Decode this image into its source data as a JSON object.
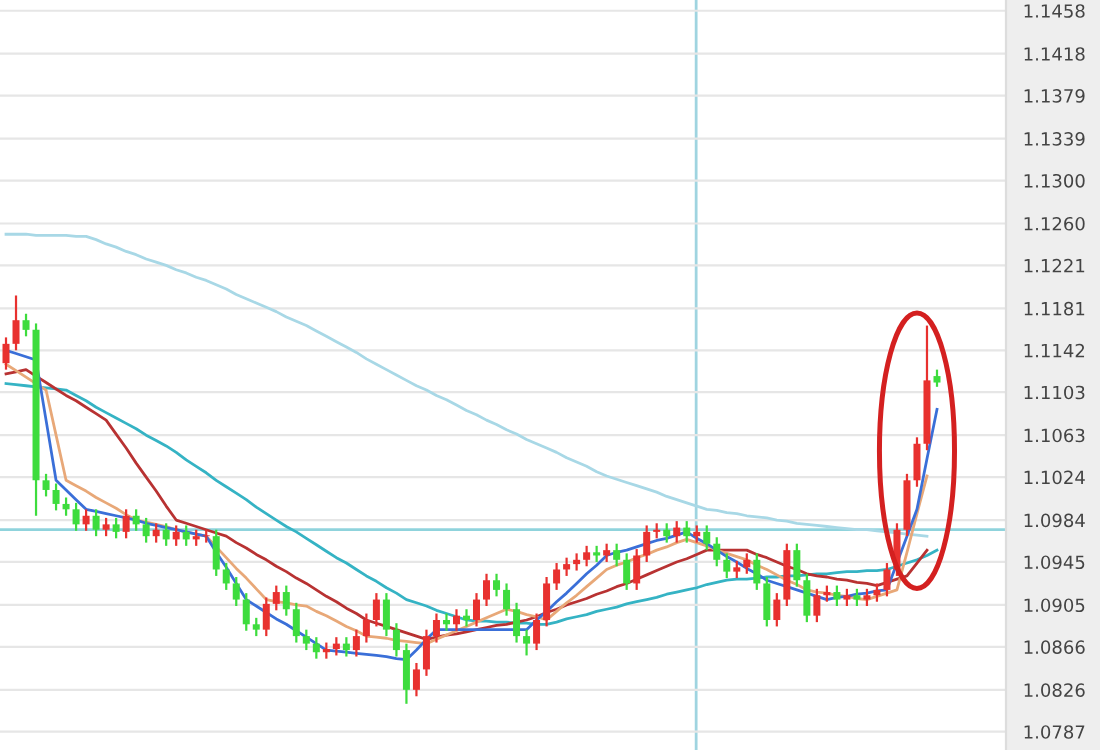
{
  "chart_data": {
    "type": "candlestick",
    "categories": [
      null,
      null,
      null,
      null,
      null,
      null,
      null,
      null,
      null,
      null,
      null,
      null,
      null,
      null,
      null,
      null,
      null,
      null,
      null,
      null,
      null,
      null,
      null,
      null,
      null,
      null,
      null,
      null,
      null,
      null,
      null,
      null,
      null,
      null,
      null,
      null,
      null,
      null,
      null,
      null,
      null,
      null,
      null,
      null,
      null,
      null,
      null,
      null,
      null,
      null,
      null,
      null,
      null,
      null,
      null,
      null,
      null,
      null,
      null,
      null,
      null,
      null,
      null,
      null,
      null,
      null,
      null,
      null,
      null,
      null,
      null,
      null,
      null,
      null,
      null,
      null,
      null,
      null,
      null,
      null,
      null,
      null,
      null,
      null,
      null,
      null,
      null,
      null,
      null,
      null,
      null,
      null,
      null,
      null
    ],
    "ohlc": [
      [
        1.113,
        1.1154,
        1.1124,
        1.1148
      ],
      [
        1.1148,
        1.1193,
        1.1142,
        1.117
      ],
      [
        1.117,
        1.1176,
        1.1155,
        1.1161
      ],
      [
        1.1161,
        1.1167,
        1.0988,
        1.1021
      ],
      [
        1.1021,
        1.1027,
        1.1006,
        1.1012
      ],
      [
        1.1012,
        1.1018,
        1.0993,
        1.0999
      ],
      [
        1.0999,
        1.1005,
        1.0988,
        1.0994
      ],
      [
        1.0994,
        1.1,
        1.0974,
        1.098
      ],
      [
        1.098,
        1.0994,
        1.0974,
        1.0988
      ],
      [
        1.0988,
        1.0994,
        1.0969,
        1.0975
      ],
      [
        1.0975,
        1.0986,
        1.0969,
        1.098
      ],
      [
        1.098,
        1.0986,
        1.0967,
        1.0973
      ],
      [
        1.0973,
        1.0994,
        1.0967,
        1.0988
      ],
      [
        1.0988,
        1.0994,
        1.0974,
        1.098
      ],
      [
        1.098,
        1.0986,
        1.0963,
        1.0969
      ],
      [
        1.0969,
        1.0981,
        1.0963,
        1.0975
      ],
      [
        1.0975,
        1.0981,
        1.096,
        1.0966
      ],
      [
        1.0966,
        1.0979,
        1.096,
        1.0973
      ],
      [
        1.0973,
        1.0979,
        1.096,
        1.0966
      ],
      [
        1.0966,
        1.0975,
        1.096,
        1.0969
      ],
      [
        1.0969,
        1.0975,
        1.0963,
        1.0969
      ],
      [
        1.0969,
        1.0975,
        1.0932,
        1.0938
      ],
      [
        1.0938,
        1.0944,
        1.0919,
        1.0925
      ],
      [
        1.0925,
        1.0931,
        1.0904,
        1.091
      ],
      [
        1.091,
        1.0916,
        1.0881,
        1.0887
      ],
      [
        1.0887,
        1.0893,
        1.0876,
        1.0882
      ],
      [
        1.0882,
        1.0912,
        1.0876,
        1.0906
      ],
      [
        1.0906,
        1.0923,
        1.09,
        1.0917
      ],
      [
        1.0917,
        1.0923,
        1.0895,
        1.0901
      ],
      [
        1.0901,
        1.0907,
        1.087,
        1.0876
      ],
      [
        1.0876,
        1.0882,
        1.0863,
        1.0869
      ],
      [
        1.0869,
        1.0875,
        1.0855,
        1.0861
      ],
      [
        1.0861,
        1.087,
        1.0855,
        1.0864
      ],
      [
        1.0864,
        1.0875,
        1.0858,
        1.0869
      ],
      [
        1.0869,
        1.0875,
        1.0857,
        1.0863
      ],
      [
        1.0863,
        1.0882,
        1.0857,
        1.0876
      ],
      [
        1.0876,
        1.0897,
        1.087,
        1.0891
      ],
      [
        1.0891,
        1.0916,
        1.0885,
        1.091
      ],
      [
        1.091,
        1.0916,
        1.0876,
        1.0882
      ],
      [
        1.0882,
        1.0888,
        1.0857,
        1.0863
      ],
      [
        1.0863,
        1.0869,
        1.0813,
        1.0826
      ],
      [
        1.0826,
        1.0851,
        1.082,
        1.0845
      ],
      [
        1.0845,
        1.0882,
        1.0839,
        1.0876
      ],
      [
        1.0876,
        1.0897,
        1.087,
        1.0891
      ],
      [
        1.0891,
        1.0897,
        1.0881,
        1.0887
      ],
      [
        1.0887,
        1.0901,
        1.0881,
        1.0895
      ],
      [
        1.0895,
        1.0901,
        1.0885,
        1.0891
      ],
      [
        1.0891,
        1.0916,
        1.0885,
        1.091
      ],
      [
        1.091,
        1.0934,
        1.0904,
        1.0928
      ],
      [
        1.0928,
        1.0934,
        1.0913,
        1.0919
      ],
      [
        1.0919,
        1.0925,
        1.0895,
        1.0901
      ],
      [
        1.0901,
        1.0907,
        1.087,
        1.0876
      ],
      [
        1.0876,
        1.0882,
        1.0858,
        1.0869
      ],
      [
        1.0869,
        1.0897,
        1.0863,
        1.0891
      ],
      [
        1.0891,
        1.0931,
        1.0885,
        1.0925
      ],
      [
        1.0925,
        1.0944,
        1.0919,
        1.0938
      ],
      [
        1.0938,
        1.0949,
        1.0932,
        1.0943
      ],
      [
        1.0943,
        1.0953,
        1.0937,
        1.0947
      ],
      [
        1.0947,
        1.096,
        1.0941,
        1.0954
      ],
      [
        1.0954,
        1.096,
        1.0945,
        1.0951
      ],
      [
        1.0951,
        1.0962,
        1.0945,
        1.0956
      ],
      [
        1.0956,
        1.0962,
        1.0941,
        1.0947
      ],
      [
        1.0947,
        1.0953,
        1.0919,
        1.0925
      ],
      [
        1.0925,
        1.0957,
        1.0919,
        1.0951
      ],
      [
        1.0951,
        1.0979,
        1.0945,
        1.0973
      ],
      [
        1.0973,
        1.0981,
        1.0967,
        1.0975
      ],
      [
        1.0975,
        1.0981,
        1.0963,
        1.0969
      ],
      [
        1.0969,
        1.0983,
        1.0963,
        1.0977
      ],
      [
        1.0977,
        1.0983,
        1.0963,
        1.0969
      ],
      [
        1.0969,
        1.0979,
        1.0963,
        1.0973
      ],
      [
        1.0973,
        1.0979,
        1.0956,
        1.0962
      ],
      [
        1.0962,
        1.0968,
        1.0941,
        1.0947
      ],
      [
        1.0947,
        1.0953,
        1.093,
        1.0936
      ],
      [
        1.0936,
        1.0946,
        1.093,
        1.094
      ],
      [
        1.094,
        1.0953,
        1.0934,
        1.0947
      ],
      [
        1.0947,
        1.0953,
        1.0919,
        1.0925
      ],
      [
        1.0925,
        1.0931,
        1.0885,
        1.0891
      ],
      [
        1.0891,
        1.0916,
        1.0885,
        1.091
      ],
      [
        1.091,
        1.0962,
        1.0904,
        1.0956
      ],
      [
        1.0956,
        1.0962,
        1.0922,
        1.0928
      ],
      [
        1.0928,
        1.0934,
        1.0889,
        1.0895
      ],
      [
        1.0895,
        1.092,
        1.0889,
        1.0914
      ],
      [
        1.0914,
        1.0923,
        1.0908,
        1.0917
      ],
      [
        1.0917,
        1.0923,
        1.0904,
        1.091
      ],
      [
        1.091,
        1.092,
        1.0904,
        1.0914
      ],
      [
        1.0914,
        1.092,
        1.0904,
        1.091
      ],
      [
        1.091,
        1.092,
        1.0904,
        1.0914
      ],
      [
        1.0914,
        1.0925,
        1.0908,
        1.0919
      ],
      [
        1.0919,
        1.0944,
        1.0913,
        1.0938
      ],
      [
        1.0938,
        1.0981,
        1.0932,
        1.0975
      ],
      [
        1.0975,
        1.1027,
        1.0969,
        1.1021
      ],
      [
        1.1021,
        1.1061,
        1.1015,
        1.1055
      ],
      [
        1.1055,
        1.1165,
        1.1049,
        1.1114
      ],
      [
        1.1118,
        1.1124,
        1.1108,
        1.1112
      ]
    ],
    "colors": [
      "#e8312f",
      "#e8312f",
      "#3ddc3d",
      "#3ddc3d",
      "#3ddc3d",
      "#3ddc3d",
      "#3ddc3d",
      "#3ddc3d",
      "#e8312f",
      "#3ddc3d",
      "#e8312f",
      "#3ddc3d",
      "#e8312f",
      "#3ddc3d",
      "#3ddc3d",
      "#e8312f",
      "#3ddc3d",
      "#e8312f",
      "#3ddc3d",
      "#e8312f",
      "#e8312f",
      "#3ddc3d",
      "#3ddc3d",
      "#3ddc3d",
      "#3ddc3d",
      "#3ddc3d",
      "#e8312f",
      "#e8312f",
      "#3ddc3d",
      "#3ddc3d",
      "#3ddc3d",
      "#3ddc3d",
      "#e8312f",
      "#e8312f",
      "#3ddc3d",
      "#e8312f",
      "#e8312f",
      "#e8312f",
      "#3ddc3d",
      "#3ddc3d",
      "#3ddc3d",
      "#e8312f",
      "#e8312f",
      "#e8312f",
      "#3ddc3d",
      "#e8312f",
      "#3ddc3d",
      "#e8312f",
      "#e8312f",
      "#3ddc3d",
      "#3ddc3d",
      "#3ddc3d",
      "#3ddc3d",
      "#e8312f",
      "#e8312f",
      "#e8312f",
      "#e8312f",
      "#e8312f",
      "#e8312f",
      "#3ddc3d",
      "#e8312f",
      "#3ddc3d",
      "#3ddc3d",
      "#e8312f",
      "#e8312f",
      "#e8312f",
      "#3ddc3d",
      "#e8312f",
      "#3ddc3d",
      "#e8312f",
      "#3ddc3d",
      "#3ddc3d",
      "#3ddc3d",
      "#e8312f",
      "#e8312f",
      "#3ddc3d",
      "#3ddc3d",
      "#e8312f",
      "#e8312f",
      "#3ddc3d",
      "#3ddc3d",
      "#e8312f",
      "#e8312f",
      "#3ddc3d",
      "#e8312f",
      "#3ddc3d",
      "#e8312f",
      "#e8312f",
      "#e8312f",
      "#e8312f",
      "#e8312f",
      "#e8312f",
      "#e8312f",
      "#3ddc3d"
    ],
    "series": [
      {
        "type": "line",
        "color": "#a8d8e6",
        "values": [
          1.125,
          1.125,
          1.125,
          1.1249,
          1.1249,
          1.1249,
          1.1249,
          1.1248,
          1.1248,
          1.1245,
          1.1241,
          1.1238,
          1.1234,
          1.1231,
          1.1227,
          1.1224,
          1.1221,
          1.1217,
          1.1214,
          1.121,
          1.1207,
          1.1203,
          1.1199,
          1.1194,
          1.119,
          1.1186,
          1.1182,
          1.1178,
          1.1173,
          1.1169,
          1.1165,
          1.116,
          1.1155,
          1.115,
          1.1145,
          1.114,
          1.1134,
          1.1129,
          1.1124,
          1.1119,
          1.1114,
          1.1109,
          1.1105,
          1.11,
          1.1096,
          1.1091,
          1.1086,
          1.1082,
          1.1077,
          1.1073,
          1.1068,
          1.1064,
          1.1059,
          1.1055,
          1.1051,
          1.1047,
          1.1042,
          1.1038,
          1.1034,
          1.1029,
          1.1025,
          1.1022,
          1.1019,
          1.1016,
          1.1013,
          1.101,
          1.1006,
          1.1003,
          1.1,
          1.0997,
          1.0994,
          1.0993,
          1.0991,
          1.099,
          1.0988,
          1.0987,
          1.0986,
          1.0984,
          1.0983,
          1.0981,
          1.098,
          1.0979,
          1.0978,
          1.0977,
          1.0976,
          1.0975,
          1.0975,
          1.0974,
          1.0973,
          1.0972,
          1.0971,
          1.097,
          1.0969,
          null
        ]
      },
      {
        "type": "line",
        "color": "#35b3c4",
        "values": [
          1.1111,
          1.111,
          1.1109,
          1.1108,
          1.1107,
          1.1106,
          1.1105,
          1.11,
          1.1095,
          1.1089,
          1.1084,
          1.1079,
          1.1074,
          1.1069,
          1.1063,
          1.1058,
          1.1053,
          1.1047,
          1.104,
          1.1034,
          1.1028,
          1.1021,
          1.1015,
          1.1009,
          1.1003,
          1.0996,
          1.099,
          1.0984,
          1.0978,
          1.0973,
          1.0967,
          1.0961,
          1.0955,
          1.0949,
          1.0944,
          1.0938,
          1.0932,
          1.0927,
          1.0921,
          1.0916,
          1.091,
          1.0907,
          1.0904,
          1.09,
          1.0897,
          1.0894,
          1.0891,
          1.089,
          1.089,
          1.0889,
          1.0889,
          1.0888,
          1.0888,
          1.0887,
          1.0887,
          1.0889,
          1.0892,
          1.0894,
          1.0896,
          1.0899,
          1.0901,
          1.0903,
          1.0906,
          1.0908,
          1.091,
          1.0912,
          1.0915,
          1.0917,
          1.0919,
          1.0921,
          1.0924,
          1.0926,
          1.0928,
          1.0929,
          1.0929,
          1.093,
          1.0931,
          1.0931,
          1.0932,
          1.0932,
          1.0933,
          1.0934,
          1.0934,
          1.0935,
          1.0936,
          1.0936,
          1.0937,
          1.0937,
          1.0938,
          1.0941,
          1.0944,
          1.0947,
          1.0951,
          1.0956
        ]
      },
      {
        "type": "line",
        "color": "#b83232",
        "values": [
          1.112,
          1.1122,
          1.1124,
          1.1118,
          1.1112,
          1.1106,
          1.11,
          1.1095,
          1.1089,
          1.1083,
          1.1077,
          1.1064,
          1.1051,
          1.1037,
          1.1024,
          1.1011,
          1.0997,
          1.0984,
          1.0981,
          1.0978,
          1.0975,
          1.0972,
          1.0969,
          1.0963,
          1.0958,
          1.0952,
          1.0947,
          1.0941,
          1.0936,
          1.093,
          1.0925,
          1.0919,
          1.0913,
          1.0908,
          1.0902,
          1.0897,
          1.0891,
          1.0888,
          1.0885,
          1.0882,
          1.0879,
          1.0876,
          1.0873,
          1.0875,
          1.0877,
          1.0878,
          1.088,
          1.0882,
          1.0884,
          1.0886,
          1.0887,
          1.0889,
          1.0891,
          1.0894,
          1.0898,
          1.0901,
          1.0905,
          1.0908,
          1.0911,
          1.0915,
          1.0918,
          1.0922,
          1.0925,
          1.0929,
          1.0933,
          1.0937,
          1.0941,
          1.0945,
          1.0948,
          1.0952,
          1.0956,
          1.0956,
          1.0956,
          1.0956,
          1.0956,
          1.0952,
          1.0949,
          1.0945,
          1.0941,
          1.0938,
          1.0934,
          1.0932,
          1.0931,
          1.0929,
          1.0928,
          1.0926,
          1.0925,
          1.0923,
          1.0926,
          1.0929,
          1.0932,
          1.0944,
          1.0956,
          null
        ]
      },
      {
        "type": "line",
        "color": "#e8a878",
        "values": [
          1.1129,
          1.1123,
          1.1117,
          1.1111,
          1.1105,
          1.1063,
          1.1021,
          1.1016,
          1.1011,
          1.1005,
          1.1,
          1.0995,
          1.0989,
          1.0984,
          1.0982,
          1.098,
          1.0978,
          1.0975,
          1.0973,
          1.0971,
          1.0969,
          1.0959,
          1.0949,
          1.0939,
          1.093,
          1.092,
          1.091,
          1.0908,
          1.0907,
          1.0905,
          1.0904,
          1.0899,
          1.0895,
          1.089,
          1.0885,
          1.0881,
          1.0876,
          1.0875,
          1.0874,
          1.0872,
          1.0871,
          1.087,
          1.0869,
          1.0873,
          1.0877,
          1.0881,
          1.0885,
          1.0889,
          1.0893,
          1.0897,
          1.0901,
          1.0899,
          1.0896,
          1.0894,
          1.0891,
          1.0899,
          1.0907,
          1.0914,
          1.0922,
          1.093,
          1.0938,
          1.0942,
          1.0945,
          1.0949,
          1.0952,
          1.0956,
          1.0959,
          1.0963,
          1.0966,
          1.0963,
          1.096,
          1.0956,
          1.0953,
          1.095,
          1.0947,
          1.0942,
          1.0938,
          1.0933,
          1.0928,
          1.0924,
          1.0919,
          1.0917,
          1.0916,
          1.0914,
          1.0913,
          1.0911,
          1.091,
          1.0913,
          1.0916,
          1.0919,
          1.0954,
          1.099,
          1.1025,
          null
        ]
      },
      {
        "type": "line",
        "color": "#3a6fd8",
        "values": [
          1.1142,
          1.1139,
          1.1136,
          1.1133,
          1.1077,
          1.1021,
          1.1012,
          1.1003,
          1.0994,
          1.0992,
          1.099,
          1.0988,
          1.0986,
          1.0984,
          1.0981,
          1.0979,
          1.0977,
          1.0975,
          1.0973,
          1.0971,
          1.0969,
          1.0954,
          1.094,
          1.0925,
          1.091,
          1.0904,
          1.0898,
          1.0892,
          1.0887,
          1.0881,
          1.0875,
          1.0869,
          1.0863,
          1.0862,
          1.0861,
          1.086,
          1.0859,
          1.0858,
          1.0857,
          1.0855,
          1.0854,
          1.0863,
          1.0873,
          1.0882,
          1.0882,
          1.0882,
          1.0882,
          1.0882,
          1.0882,
          1.0882,
          1.0882,
          1.0882,
          1.0882,
          1.0891,
          1.0899,
          1.0908,
          1.0916,
          1.0925,
          1.0934,
          1.0942,
          1.0951,
          1.0954,
          1.0956,
          1.0959,
          1.0962,
          1.0965,
          1.0967,
          1.097,
          1.0973,
          1.0967,
          1.0962,
          1.0956,
          1.095,
          1.0945,
          1.0939,
          1.0934,
          1.0928,
          1.0925,
          1.0922,
          1.0919,
          1.0916,
          1.0913,
          1.091,
          1.0912,
          1.0913,
          1.0915,
          1.0916,
          1.0918,
          1.0919,
          1.0944,
          1.0969,
          1.0994,
          1.1041,
          1.1087
        ]
      }
    ],
    "ylim": [
      1.077,
      1.1468
    ],
    "yticks": [
      1.0787,
      1.0826,
      1.0866,
      1.0905,
      1.0945,
      1.0984,
      1.1024,
      1.1063,
      1.1103,
      1.1142,
      1.1181,
      1.1221,
      {
        "value": 1.126,
        "label": "1.1260"
      },
      {
        "value": 1.13,
        "label": "1.1300"
      },
      1.1339,
      1.1379,
      1.1418,
      1.1458
    ],
    "grid": "y",
    "tick_labels": "y",
    "ref_lines": [
      {
        "axis": "y",
        "value": 1.0975,
        "color": "#8fd3dc"
      }
    ]
  }
}
